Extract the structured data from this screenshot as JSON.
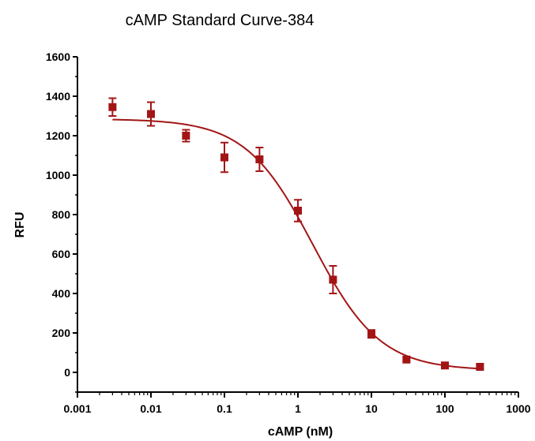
{
  "colors": {
    "series": "#a31515",
    "axis": "#000000",
    "background": "#ffffff"
  },
  "chart_data": {
    "type": "scatter",
    "title": "cAMP Standard  Curve-384",
    "xlabel": "cAMP (nM)",
    "ylabel": "RFU",
    "x_scale": "log",
    "xlim": [
      0.001,
      1000
    ],
    "ylim": [
      -100,
      1600
    ],
    "x_ticks": [
      0.001,
      0.01,
      0.1,
      1,
      10,
      100,
      1000
    ],
    "x_tick_labels": [
      "0.001",
      "0.01",
      "0.1",
      "1",
      "10",
      "100",
      "1000"
    ],
    "y_ticks": [
      0,
      200,
      400,
      600,
      800,
      1000,
      1200,
      1400,
      1600
    ],
    "y_tick_labels": [
      "0",
      "200",
      "400",
      "600",
      "800",
      "1000",
      "1200",
      "1400",
      "1600"
    ],
    "grid": false,
    "legend": "none",
    "series": [
      {
        "marker": "square",
        "points": [
          {
            "x": 0.003,
            "y": 1345,
            "err": 45
          },
          {
            "x": 0.01,
            "y": 1310,
            "err": 60
          },
          {
            "x": 0.03,
            "y": 1200,
            "err": 30
          },
          {
            "x": 0.1,
            "y": 1090,
            "err": 75
          },
          {
            "x": 0.3,
            "y": 1080,
            "err": 60
          },
          {
            "x": 1,
            "y": 820,
            "err": 55
          },
          {
            "x": 3,
            "y": 470,
            "err": 70
          },
          {
            "x": 10,
            "y": 195,
            "err": 20
          },
          {
            "x": 30,
            "y": 65,
            "err": 10
          },
          {
            "x": 100,
            "y": 35,
            "err": 8
          },
          {
            "x": 300,
            "y": 28,
            "err": 8
          }
        ]
      }
    ],
    "fit": {
      "type": "four-parameter-logistic",
      "top": 1285,
      "bottom": 10,
      "ec50": 1.6,
      "hill": 0.95
    }
  }
}
